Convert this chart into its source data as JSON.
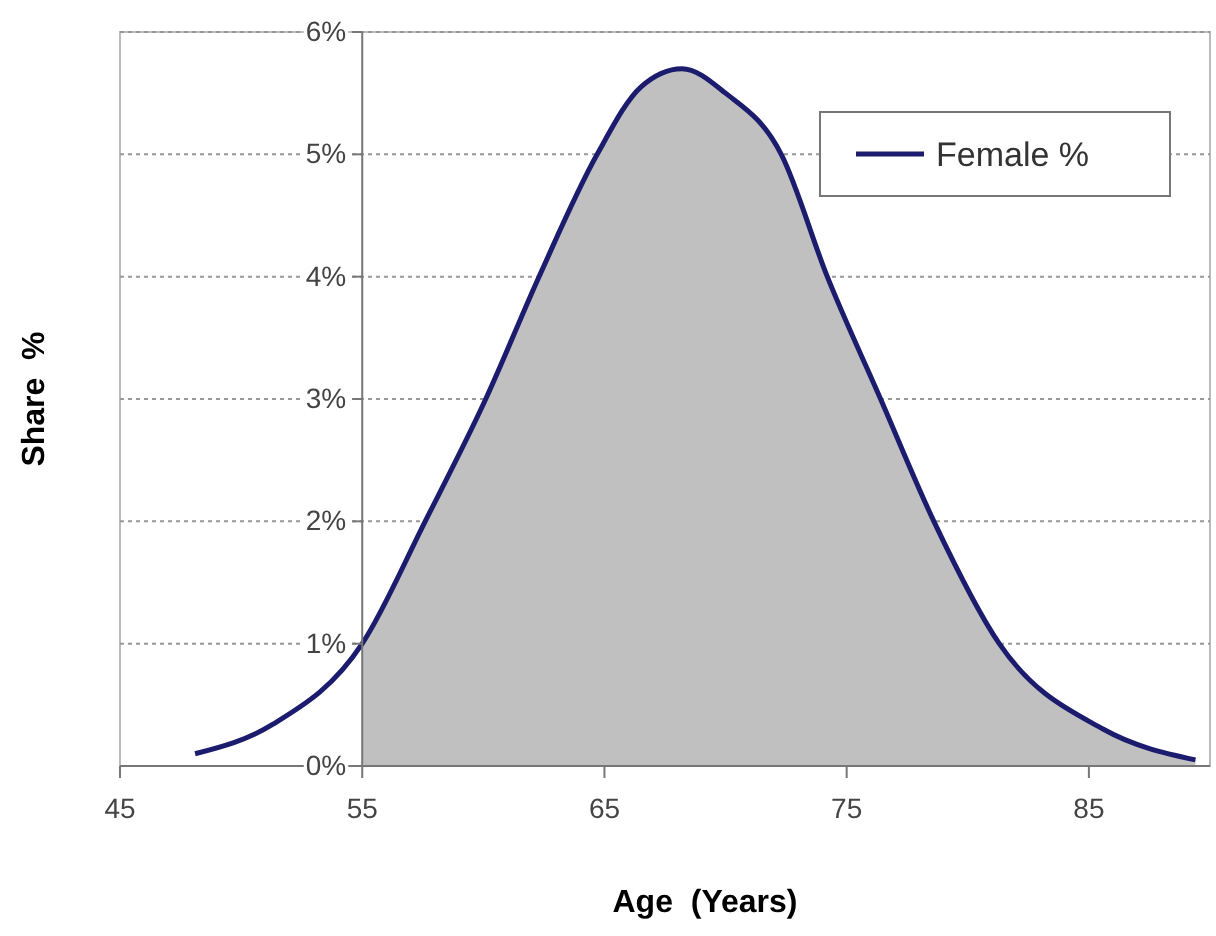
{
  "chart_data": {
    "type": "line",
    "xlabel": "Age  (Years)",
    "ylabel": "Share  %",
    "xlim": [
      45,
      90
    ],
    "xticks": [
      45,
      55,
      65,
      75,
      85
    ],
    "ylim": [
      0,
      6
    ],
    "yticks": [
      {
        "value": 0,
        "label": "0%"
      },
      {
        "value": 1,
        "label": "1%"
      },
      {
        "value": 2,
        "label": "2%"
      },
      {
        "value": 3,
        "label": "3%"
      },
      {
        "value": 4,
        "label": "4%"
      },
      {
        "value": 5,
        "label": "5%"
      },
      {
        "value": 6,
        "label": "6%"
      }
    ],
    "grid": "y",
    "legend": "top right",
    "marker": "none",
    "line_style": "solid",
    "series": [
      {
        "type": "area",
        "color": "#c0c0c0",
        "x": [
          55,
          57.6,
          60.1,
          62.3,
          64.7,
          66.5,
          68.2,
          70,
          72.3,
          74.2,
          76.4,
          78.6,
          81.3,
          85.6,
          89.4
        ],
        "values": [
          1.0,
          2.0,
          3.0,
          4.0,
          5.0,
          5.55,
          5.7,
          5.5,
          5.0,
          4.0,
          3.0,
          2.0,
          1.0,
          0.3,
          0.05
        ]
      },
      {
        "name": "Female %",
        "color": "#1c1c6e",
        "x": [
          48.1,
          51.3,
          55,
          57.6,
          60.1,
          62.3,
          64.7,
          66.5,
          68.2,
          70,
          72.3,
          74.2,
          76.4,
          78.6,
          81.3,
          85.6,
          89.4
        ],
        "values": [
          0.1,
          0.34,
          1.0,
          2.0,
          3.0,
          4.0,
          5.0,
          5.55,
          5.7,
          5.5,
          5.0,
          4.0,
          3.0,
          2.0,
          1.0,
          0.3,
          0.05
        ]
      }
    ]
  }
}
